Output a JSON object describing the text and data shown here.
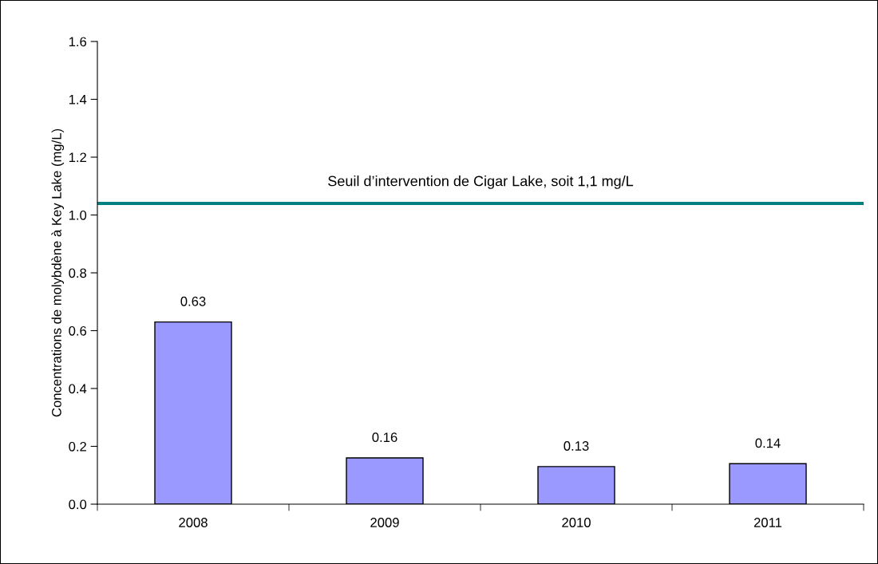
{
  "chart_data": {
    "type": "bar",
    "ylabel": "Concentrations de molybdène à Key Lake (mg/L)",
    "categories": [
      "2008",
      "2009",
      "2010",
      "2011"
    ],
    "values": [
      0.63,
      0.16,
      0.13,
      0.14
    ],
    "color": "#9999ff",
    "data_labels": true,
    "ylim": [
      0,
      1.6
    ],
    "yticks": [
      {
        "value": 0,
        "label": "0.0"
      },
      {
        "value": 0.2,
        "label": "0.2"
      },
      {
        "value": 0.4,
        "label": "0.4"
      },
      {
        "value": 0.6,
        "label": "0.6"
      },
      {
        "value": 0.8,
        "label": "0.8"
      },
      {
        "value": 1.0,
        "label": "1.0"
      },
      {
        "value": 1.2,
        "label": "1.2"
      },
      {
        "value": 1.4,
        "label": "1.4"
      },
      {
        "value": 1.6,
        "label": "1.6"
      }
    ],
    "ref_lines": [
      {
        "axis": "y",
        "value": 1.04,
        "label": "Seuil d’intervention de Cigar Lake, soit 1,1 mg/L",
        "color": "#008080"
      }
    ],
    "grid": false,
    "legend": false
  }
}
